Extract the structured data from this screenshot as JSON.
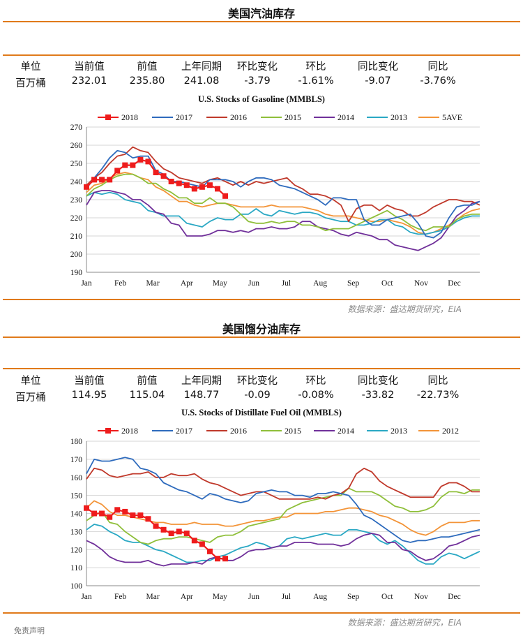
{
  "sections": [
    {
      "title": "美国汽油库存",
      "headers": [
        "单位",
        "当前值",
        "前值",
        "上年同期",
        "环比变化",
        "环比",
        "同比变化",
        "同比"
      ],
      "values": [
        "百万桶",
        "232.01",
        "235.80",
        "241.08",
        "-3.79",
        "-1.61%",
        "-9.07",
        "-3.76%"
      ],
      "source": "数据来源：盛达期货研究，EIA"
    },
    {
      "title": "美国馏分油库存",
      "headers": [
        "单位",
        "当前值",
        "前值",
        "上年同期",
        "环比变化",
        "环比",
        "同比变化",
        "同比"
      ],
      "values": [
        "百万桶",
        "114.95",
        "115.04",
        "148.77",
        "-0.09",
        "-0.08%",
        "-33.82",
        "-22.73%"
      ],
      "source": "数据来源：盛达期货研究，EIA"
    }
  ],
  "footer_text": "免责声明",
  "colors": {
    "rule": "#e07a1a",
    "s2018": "#ee1c1c",
    "s2017": "#2e6bbd",
    "s2016": "#c0392b",
    "s2015": "#8fbf3a",
    "s2014": "#70309a",
    "s2013": "#2aa8c4",
    "s5ave": "#f39438",
    "s2012": "#f39438"
  },
  "chart_data": [
    {
      "type": "line",
      "title": "U.S. Stocks of  Gasoline (MMBLS)",
      "ylim": [
        190,
        270
      ],
      "yticks": [
        "190",
        "200",
        "210",
        "220",
        "230",
        "240",
        "250",
        "260",
        "270"
      ],
      "x_range": [
        1,
        52
      ],
      "xtick_labels": [
        "Jan",
        "Feb",
        "Mar",
        "Apr",
        "May",
        "Jun",
        "Jul",
        "Aug",
        "Sep",
        "Oct",
        "Nov",
        "Dec"
      ],
      "xtick_weeks": [
        1,
        5.4,
        9.6,
        14,
        18.3,
        22.7,
        26.9,
        31.3,
        35.6,
        40,
        44.4,
        48.7
      ],
      "legend_placement": "top",
      "grid": "horizontal",
      "series": [
        {
          "name": "2018",
          "color_key": "s2018",
          "marker": "square",
          "values": [
            237,
            241,
            241,
            241,
            246,
            249,
            249,
            252,
            251,
            245,
            243,
            240,
            239,
            238,
            236,
            237,
            238,
            236,
            232
          ]
        },
        {
          "name": "2017",
          "color_key": "s2017",
          "values": [
            236,
            242,
            247,
            253,
            257,
            256,
            253,
            254,
            254,
            246,
            244,
            240,
            240,
            239,
            238,
            237,
            241,
            241,
            241,
            240,
            237,
            240,
            242,
            242,
            241,
            238,
            237,
            236,
            234,
            232,
            230,
            227,
            231,
            231,
            230,
            230,
            219,
            216,
            216,
            219,
            220,
            221,
            222,
            217,
            210,
            209,
            212,
            220,
            226,
            227,
            227,
            229
          ]
        },
        {
          "name": "2016",
          "color_key": "s2016",
          "values": [
            238,
            242,
            245,
            250,
            254,
            255,
            259,
            257,
            256,
            251,
            247,
            245,
            242,
            241,
            240,
            239,
            241,
            242,
            240,
            238,
            240,
            238,
            240,
            239,
            240,
            241,
            242,
            238,
            236,
            233,
            233,
            232,
            230,
            227,
            218,
            225,
            227,
            227,
            224,
            227,
            225,
            224,
            221,
            221,
            223,
            226,
            228,
            230,
            230,
            229,
            229,
            227
          ]
        },
        {
          "name": "2015",
          "color_key": "s2015",
          "values": [
            232,
            236,
            238,
            241,
            243,
            244,
            244,
            242,
            239,
            239,
            236,
            234,
            231,
            231,
            228,
            228,
            231,
            228,
            228,
            226,
            222,
            218,
            217,
            217,
            218,
            217,
            218,
            218,
            216,
            216,
            215,
            213,
            214,
            214,
            214,
            216,
            218,
            220,
            222,
            224,
            221,
            219,
            216,
            214,
            213,
            215,
            215,
            215,
            219,
            221,
            222,
            222
          ]
        },
        {
          "name": "2014",
          "color_key": "s2014",
          "values": [
            227,
            234,
            235,
            235,
            234,
            233,
            230,
            230,
            227,
            223,
            222,
            217,
            216,
            210,
            210,
            210,
            211,
            213,
            213,
            212,
            213,
            212,
            214,
            214,
            215,
            214,
            214,
            215,
            218,
            218,
            215,
            214,
            213,
            211,
            210,
            212,
            211,
            210,
            208,
            208,
            205,
            204,
            203,
            202,
            204,
            206,
            209,
            215,
            221,
            224,
            228,
            229
          ]
        },
        {
          "name": "2013",
          "color_key": "s2013",
          "values": [
            232,
            234,
            233,
            234,
            233,
            230,
            229,
            228,
            224,
            223,
            221,
            221,
            221,
            217,
            216,
            215,
            218,
            220,
            219,
            219,
            222,
            222,
            225,
            222,
            221,
            224,
            223,
            222,
            223,
            223,
            222,
            220,
            219,
            218,
            218,
            216,
            216,
            217,
            219,
            219,
            216,
            215,
            212,
            211,
            211,
            212,
            213,
            215,
            218,
            220,
            221,
            221
          ]
        },
        {
          "name": "5AVE",
          "color_key": "s5ave",
          "values": [
            234,
            238,
            239,
            242,
            244,
            245,
            244,
            242,
            241,
            237,
            235,
            232,
            229,
            229,
            227,
            226,
            227,
            228,
            228,
            227,
            226,
            226,
            226,
            226,
            227,
            226,
            226,
            226,
            226,
            225,
            224,
            222,
            221,
            221,
            221,
            220,
            219,
            218,
            218,
            219,
            218,
            217,
            215,
            212,
            211,
            212,
            214,
            216,
            219,
            222,
            224,
            225
          ]
        }
      ]
    },
    {
      "type": "line",
      "title": "U.S.  Stocks of Distillate Fuel Oil (MMBLS)",
      "ylim": [
        100,
        180
      ],
      "yticks": [
        "100",
        "110",
        "120",
        "130",
        "140",
        "150",
        "160",
        "170",
        "180"
      ],
      "x_range": [
        1,
        52
      ],
      "xtick_labels": [
        "Jan",
        "Feb",
        "Mar",
        "Apr",
        "May",
        "Jun",
        "Jul",
        "Aug",
        "Sep",
        "Oct",
        "Nov",
        "Dec"
      ],
      "xtick_weeks": [
        1,
        5.4,
        9.6,
        14,
        18.3,
        22.7,
        26.9,
        31.3,
        35.6,
        40,
        44.4,
        48.7
      ],
      "legend_placement": "top",
      "grid": "horizontal",
      "series": [
        {
          "name": "2018",
          "color_key": "s2018",
          "marker": "square",
          "values": [
            143,
            140,
            140,
            138,
            142,
            141,
            139,
            139,
            137,
            133,
            131,
            129,
            130,
            129,
            125,
            123,
            119,
            115,
            115
          ]
        },
        {
          "name": "2017",
          "color_key": "s2017",
          "values": [
            162,
            170,
            169,
            169,
            170,
            171,
            170,
            165,
            164,
            162,
            157,
            155,
            153,
            152,
            150,
            148,
            151,
            150,
            148,
            147,
            146,
            147,
            151,
            152,
            153,
            152,
            152,
            150,
            150,
            149,
            151,
            151,
            152,
            151,
            150,
            145,
            139,
            137,
            134,
            131,
            128,
            125,
            124,
            125,
            125,
            126,
            127,
            127,
            128,
            129,
            130,
            131
          ]
        },
        {
          "name": "2016",
          "color_key": "s2016",
          "values": [
            159,
            165,
            164,
            161,
            160,
            161,
            162,
            162,
            163,
            160,
            160,
            162,
            161,
            161,
            162,
            159,
            157,
            156,
            154,
            152,
            150,
            151,
            152,
            152,
            150,
            148,
            148,
            148,
            148,
            148,
            149,
            148,
            150,
            151,
            154,
            162,
            165,
            163,
            158,
            155,
            153,
            151,
            149,
            149,
            149,
            149,
            155,
            157,
            157,
            155,
            152,
            152
          ]
        },
        {
          "name": "2015",
          "color_key": "s2015",
          "values": [
            136,
            139,
            141,
            135,
            134,
            130,
            127,
            124,
            123,
            125,
            126,
            126,
            127,
            127,
            126,
            125,
            124,
            127,
            128,
            128,
            130,
            133,
            134,
            135,
            136,
            137,
            142,
            144,
            146,
            147,
            148,
            149,
            150,
            150,
            154,
            152,
            152,
            152,
            150,
            147,
            144,
            143,
            141,
            141,
            142,
            144,
            149,
            152,
            152,
            151,
            153,
            153
          ]
        },
        {
          "name": "2014",
          "color_key": "s2014",
          "values": [
            125,
            123,
            120,
            116,
            114,
            113,
            113,
            113,
            114,
            112,
            111,
            112,
            112,
            112,
            113,
            112,
            115,
            116,
            114,
            114,
            116,
            119,
            120,
            120,
            121,
            122,
            122,
            124,
            124,
            124,
            123,
            123,
            123,
            122,
            123,
            126,
            128,
            129,
            128,
            124,
            124,
            120,
            119,
            116,
            114,
            115,
            118,
            122,
            123,
            125,
            127,
            128
          ]
        },
        {
          "name": "2013",
          "color_key": "s2013",
          "values": [
            131,
            134,
            133,
            130,
            128,
            125,
            124,
            124,
            122,
            120,
            119,
            117,
            115,
            113,
            113,
            114,
            114,
            116,
            117,
            119,
            121,
            122,
            124,
            123,
            121,
            122,
            126,
            127,
            126,
            127,
            128,
            129,
            128,
            128,
            131,
            131,
            130,
            129,
            125,
            123,
            125,
            122,
            118,
            114,
            112,
            112,
            116,
            118,
            117,
            115,
            117,
            119
          ]
        },
        {
          "name": "2012",
          "color_key": "s2012",
          "values": [
            143,
            147,
            145,
            141,
            139,
            139,
            138,
            137,
            136,
            135,
            135,
            134,
            134,
            134,
            135,
            134,
            134,
            134,
            133,
            133,
            134,
            135,
            136,
            136,
            137,
            138,
            138,
            140,
            140,
            140,
            140,
            141,
            141,
            142,
            143,
            143,
            142,
            141,
            139,
            138,
            136,
            134,
            131,
            129,
            128,
            130,
            133,
            135,
            135,
            135,
            136,
            136
          ]
        }
      ]
    }
  ]
}
